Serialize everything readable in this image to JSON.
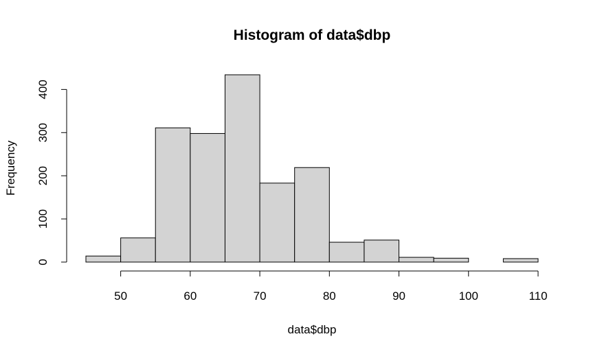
{
  "chart_data": {
    "type": "bar",
    "title": "Histogram of data$dbp",
    "xlabel": "data$dbp",
    "ylabel": "Frequency",
    "bin_edges": [
      45,
      50,
      55,
      60,
      65,
      70,
      75,
      80,
      85,
      90,
      95,
      100,
      105,
      110
    ],
    "values": [
      14,
      56,
      311,
      298,
      434,
      183,
      219,
      46,
      51,
      11,
      9,
      0,
      8
    ],
    "x_ticks": [
      50,
      60,
      70,
      80,
      90,
      100,
      110
    ],
    "y_ticks": [
      0,
      100,
      200,
      300,
      400
    ],
    "xlim": [
      45,
      110
    ],
    "ylim": [
      0,
      434
    ],
    "grid": false,
    "bar_color": "#d3d3d3",
    "edge_color": "#000000"
  }
}
